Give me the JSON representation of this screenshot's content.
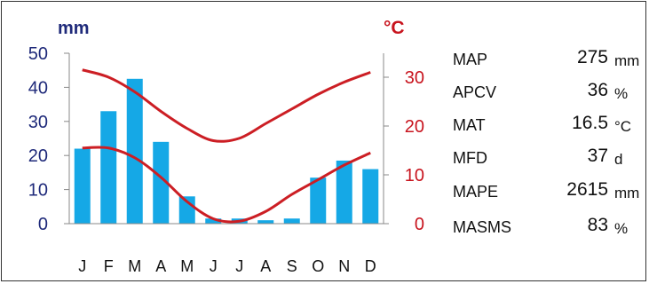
{
  "chart_data": {
    "type": "bar",
    "categories": [
      "J",
      "F",
      "M",
      "A",
      "M",
      "J",
      "J",
      "A",
      "S",
      "O",
      "N",
      "D"
    ],
    "left_axis": {
      "unit": "mm",
      "ticks": [
        "50",
        "40",
        "30",
        "20",
        "10",
        "0"
      ],
      "range": [
        0,
        50
      ],
      "color": "#1f2a7a"
    },
    "right_axis": {
      "unit": "°C",
      "ticks": [
        "30",
        "20",
        "10",
        "0"
      ],
      "range": [
        0,
        35
      ],
      "color": "#c8141e"
    },
    "series": [
      {
        "kind": "bar",
        "axis": "left",
        "color": "#15a8e6",
        "values": [
          22,
          33,
          42.5,
          24,
          8,
          1.5,
          1.5,
          1,
          1.5,
          13.5,
          18.5,
          16
        ]
      },
      {
        "kind": "line",
        "axis": "right",
        "color": "#cc1e24",
        "values": [
          31.5,
          30,
          27,
          23,
          19.5,
          17,
          17.5,
          20.5,
          23.5,
          26.5,
          29,
          31
        ]
      },
      {
        "kind": "line",
        "axis": "right",
        "color": "#cc1e24",
        "values": [
          15.5,
          15.5,
          13.5,
          9.5,
          4.5,
          1,
          0.5,
          2.5,
          6,
          9,
          12,
          14.5
        ]
      }
    ],
    "grid": false
  },
  "stats": [
    {
      "name": "MAP",
      "value": "275",
      "unit": "mm"
    },
    {
      "name": "APCV",
      "value": "36",
      "unit": "%"
    },
    {
      "name": "MAT",
      "value": "16.5",
      "unit": "°C"
    },
    {
      "name": "MFD",
      "value": "37",
      "unit": "d"
    },
    {
      "name": "MAPE",
      "value": "2615",
      "unit": "mm"
    },
    {
      "name": "MASMS",
      "value": "83",
      "unit": "%"
    }
  ]
}
